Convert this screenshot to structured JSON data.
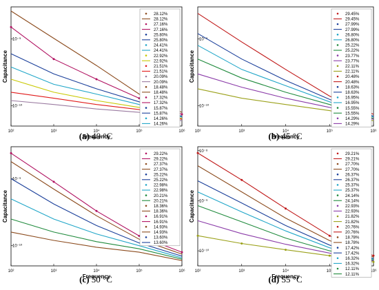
{
  "figure": {
    "panels": [
      {
        "id": "a",
        "caption_letter": "(a)",
        "caption_text": "40 °C",
        "xlabel": "Frequency",
        "ylabel": "Capacitance",
        "x_ticks": [
          "10²",
          "10³",
          "10⁴",
          "10⁵",
          "10⁶"
        ],
        "y_ticks": [
          "10⁻⁹",
          "10⁻¹⁰"
        ],
        "legend": [
          "28.12%",
          "28.12%",
          "27.16%",
          "27.16%",
          "25.80%",
          "25.80%",
          "24.41%",
          "24.41%",
          "22.92%",
          "22.92%",
          "21.51%",
          "21.51%",
          "20.09%",
          "20.09%",
          "18.48%",
          "18.48%",
          "17.32%",
          "17.32%",
          "15.87%",
          "15.87%",
          "14.26%",
          "14.26%"
        ]
      },
      {
        "id": "b",
        "caption_letter": "(b)",
        "caption_text": "45 °C",
        "xlabel": "Frequency",
        "ylabel": "Capacitance",
        "x_ticks": [
          "10²",
          "10³",
          "10⁴",
          "10⁵",
          "10⁶"
        ],
        "y_ticks": [
          "10⁻⁹",
          "10⁻¹⁰"
        ],
        "legend": [
          "29.45%",
          "29.45%",
          "27.99%",
          "27.99%",
          "26.80%",
          "26.80%",
          "25.22%",
          "25.22%",
          "23.77%",
          "23.77%",
          "22.11%",
          "22.11%",
          "20.48%",
          "20.48%",
          "18.63%",
          "18.63%",
          "16.95%",
          "16.95%",
          "15.55%",
          "15.55%",
          "14.29%",
          "14.29%"
        ]
      },
      {
        "id": "c",
        "caption_letter": "(c)",
        "caption_text": "50 °C",
        "xlabel": "Frequency",
        "ylabel": "Capacitance",
        "x_ticks": [
          "10²",
          "10³",
          "10⁴",
          "10⁵",
          "10⁶"
        ],
        "y_ticks": [
          "10⁻⁹",
          "10⁻¹⁰"
        ],
        "legend": [
          "29.22%",
          "29.22%",
          "27.37%",
          "27.37%",
          "25.22%",
          "25.22%",
          "22.98%",
          "22.98%",
          "20.21%",
          "20.21%",
          "18.36%",
          "18.36%",
          "16.91%",
          "16.91%",
          "14.93%",
          "14.93%",
          "13.60%",
          "13.60%"
        ]
      },
      {
        "id": "d",
        "caption_letter": "(d)",
        "caption_text": "55 °C",
        "xlabel": "Frequency",
        "ylabel": "Capacitance",
        "x_ticks": [
          "10²",
          "10³",
          "10⁴",
          "10⁵",
          "10⁶"
        ],
        "y_ticks": [
          "10⁻⁸",
          "10⁻⁹",
          "10⁻¹⁰"
        ],
        "legend": [
          "29.21%",
          "29.21%",
          "27.70%",
          "27.70%",
          "26.37%",
          "26.37%",
          "25.37%",
          "25.37%",
          "24.14%",
          "24.14%",
          "22.93%",
          "22.93%",
          "21.82%",
          "21.82%",
          "20.76%",
          "20.76%",
          "18.78%",
          "18.78%",
          "17.42%",
          "17.42%",
          "16.32%",
          "16.32%",
          "12.11%",
          "12.11%"
        ]
      }
    ]
  },
  "chart_data": [
    {
      "type": "line",
      "log_x": true,
      "log_y": true,
      "xlabel": "Frequency",
      "ylabel": "Capacitance",
      "xlim": [
        100,
        1000000
      ],
      "ylim": [
        5e-11,
        3e-09
      ],
      "series": [
        {
          "name": "28.12%",
          "color": "#8b4a1c",
          "marker": "line",
          "x": [
            100,
            1000,
            10000,
            100000,
            1000000
          ],
          "y": [
            2.6e-09,
            1.02e-09,
            4e-10,
            1.5e-10,
            8e-11
          ]
        },
        {
          "name": "27.16%",
          "color": "#b01060",
          "marker": "dots",
          "x": [
            100,
            1000,
            10000,
            100000,
            1000000
          ],
          "y": [
            1.5e-09,
            5e-10,
            2.5e-10,
            1.3e-10,
            7.5e-11
          ]
        },
        {
          "name": "25.80%",
          "color": "#1a3f9a",
          "marker": "line",
          "x": [
            100,
            1000,
            10000,
            100000,
            1000000
          ],
          "y": [
            6e-10,
            3e-10,
            1.8e-10,
            1.15e-10,
            7e-11
          ]
        },
        {
          "name": "24.41%",
          "color": "#20a6c8",
          "marker": "line",
          "x": [
            100,
            1000,
            10000,
            100000,
            1000000
          ],
          "y": [
            3.8e-10,
            2.1e-10,
            1.5e-10,
            1.05e-10,
            6.8e-11
          ]
        },
        {
          "name": "20.09%",
          "color": "#c8c800",
          "marker": "line",
          "x": [
            100,
            1000,
            10000,
            100000,
            1000000
          ],
          "y": [
            2.5e-10,
            1.6e-10,
            1.2e-10,
            9.5e-11,
            6.5e-11
          ]
        },
        {
          "name": "17.32%",
          "color": "#e01818",
          "marker": "line",
          "x": [
            100,
            1000,
            10000,
            100000,
            1000000
          ],
          "y": [
            1.6e-10,
            1.3e-10,
            1.05e-10,
            8.8e-11,
            6.3e-11
          ]
        },
        {
          "name": "14.26%",
          "color": "#9a7aa0",
          "marker": "line",
          "x": [
            100,
            1000,
            10000,
            100000,
            1000000
          ],
          "y": [
            1.2e-10,
            1.05e-10,
            9e-11,
            8e-11,
            6e-11
          ]
        }
      ]
    },
    {
      "type": "line",
      "log_x": true,
      "log_y": true,
      "xlabel": "Frequency",
      "ylabel": "Capacitance",
      "xlim": [
        100,
        1000000
      ],
      "ylim": [
        5e-11,
        3e-09
      ],
      "series": [
        {
          "name": "29.45%",
          "color": "#c01818",
          "marker": "line",
          "x": [
            100,
            1000,
            10000,
            100000,
            1000000
          ],
          "y": [
            2.4e-09,
            9e-10,
            3.5e-10,
            1.4e-10,
            7.5e-11
          ]
        },
        {
          "name": "26.80%",
          "color": "#1a3f9a",
          "marker": "line",
          "x": [
            100,
            1000,
            10000,
            100000,
            1000000
          ],
          "y": [
            1.2e-09,
            5e-10,
            2.4e-10,
            1.25e-10,
            7e-11
          ]
        },
        {
          "name": "25.22%",
          "color": "#20a6c8",
          "marker": "line",
          "x": [
            100,
            1000,
            10000,
            100000,
            1000000
          ],
          "y": [
            8e-10,
            3.5e-10,
            2e-10,
            1.15e-10,
            6.8e-11
          ]
        },
        {
          "name": "22.11%",
          "color": "#1f8a3c",
          "marker": "line",
          "x": [
            100,
            1000,
            10000,
            100000,
            1000000
          ],
          "y": [
            5e-10,
            2.6e-10,
            1.6e-10,
            1.05e-10,
            6.5e-11
          ]
        },
        {
          "name": "18.63%",
          "color": "#8a3aa8",
          "marker": "line",
          "x": [
            100,
            1000,
            10000,
            100000,
            1000000
          ],
          "y": [
            3e-10,
            1.9e-10,
            1.3e-10,
            9.5e-11,
            6.3e-11
          ]
        },
        {
          "name": "14.29%",
          "color": "#9aa018",
          "marker": "line",
          "x": [
            100,
            1000,
            10000,
            100000,
            1000000
          ],
          "y": [
            1.8e-10,
            1.3e-10,
            1.05e-10,
            8.5e-11,
            6e-11
          ]
        }
      ]
    },
    {
      "type": "line",
      "log_x": true,
      "log_y": true,
      "xlabel": "Frequency",
      "ylabel": "Capacitance",
      "xlim": [
        100,
        1000000
      ],
      "ylim": [
        5e-11,
        3e-09
      ],
      "series": [
        {
          "name": "29.22%",
          "color": "#b01060",
          "marker": "dots",
          "x": [
            100,
            1000,
            10000,
            100000,
            1000000
          ],
          "y": [
            2.4e-09,
            9e-10,
            3.3e-10,
            1.4e-10,
            8e-11
          ]
        },
        {
          "name": "27.37%",
          "color": "#8b4a1c",
          "marker": "line",
          "x": [
            100,
            1000,
            10000,
            100000,
            1000000
          ],
          "y": [
            1.8e-09,
            7e-10,
            2.8e-10,
            1.25e-10,
            7.5e-11
          ]
        },
        {
          "name": "25.22%",
          "color": "#1a3f9a",
          "marker": "line",
          "x": [
            100,
            1000,
            10000,
            100000,
            1000000
          ],
          "y": [
            1e-09,
            4.2e-10,
            2e-10,
            1.1e-10,
            7e-11
          ]
        },
        {
          "name": "20.21%",
          "color": "#20a6c8",
          "marker": "line",
          "x": [
            100,
            1000,
            10000,
            100000,
            1000000
          ],
          "y": [
            5e-10,
            2.5e-10,
            1.5e-10,
            1e-10,
            6.6e-11
          ]
        },
        {
          "name": "16.91%",
          "color": "#1f8a3c",
          "marker": "line",
          "x": [
            100,
            1000,
            10000,
            100000,
            1000000
          ],
          "y": [
            2.5e-10,
            1.6e-10,
            1.15e-10,
            9e-11,
            6.3e-11
          ]
        },
        {
          "name": "13.60%",
          "color": "#8b4a1c",
          "marker": "line",
          "x": [
            100,
            1000,
            10000,
            100000,
            1000000
          ],
          "y": [
            1.6e-10,
            1.2e-10,
            9.5e-11,
            8e-11,
            6e-11
          ]
        }
      ]
    },
    {
      "type": "line",
      "log_x": true,
      "log_y": true,
      "xlabel": "Frequency",
      "ylabel": "Capacitance",
      "xlim": [
        100,
        1000000
      ],
      "ylim": [
        5e-11,
        1.2e-08
      ],
      "series": [
        {
          "name": "29.21%",
          "color": "#c01818",
          "marker": "dots",
          "x": [
            100,
            1000,
            10000,
            100000,
            1000000
          ],
          "y": [
            9e-09,
            2.6e-09,
            7e-10,
            2e-10,
            8e-11
          ]
        },
        {
          "name": "26.37%",
          "color": "#8b4a1c",
          "marker": "line",
          "x": [
            100,
            1000,
            10000,
            100000,
            1000000
          ],
          "y": [
            5e-09,
            1.5e-09,
            4.5e-10,
            1.6e-10,
            7.5e-11
          ]
        },
        {
          "name": "24.14%",
          "color": "#1a3f9a",
          "marker": "line",
          "x": [
            100,
            1000,
            10000,
            100000,
            1000000
          ],
          "y": [
            2.5e-09,
            9e-10,
            3.2e-10,
            1.3e-10,
            7e-11
          ]
        },
        {
          "name": "22.93%",
          "color": "#20a6c8",
          "marker": "line",
          "x": [
            100,
            1000,
            10000,
            100000,
            1000000
          ],
          "y": [
            1.5e-09,
            6e-10,
            2.5e-10,
            1.15e-10,
            6.8e-11
          ]
        },
        {
          "name": "20.76%",
          "color": "#1f8a3c",
          "marker": "line",
          "x": [
            100,
            1000,
            10000,
            100000,
            1000000
          ],
          "y": [
            8e-10,
            3.8e-10,
            1.8e-10,
            1e-10,
            6.5e-11
          ]
        },
        {
          "name": "17.42%",
          "color": "#8a3aa8",
          "marker": "line",
          "x": [
            100,
            1000,
            10000,
            100000,
            1000000
          ],
          "y": [
            4e-10,
            2.2e-10,
            1.35e-10,
            9e-11,
            6.3e-11
          ]
        },
        {
          "name": "12.11%",
          "color": "#9aa018",
          "marker": "dots",
          "x": [
            100,
            1000,
            10000,
            100000,
            1000000
          ],
          "y": [
            2e-10,
            1.4e-10,
            1.05e-10,
            8e-11,
            6e-11
          ]
        }
      ]
    }
  ]
}
